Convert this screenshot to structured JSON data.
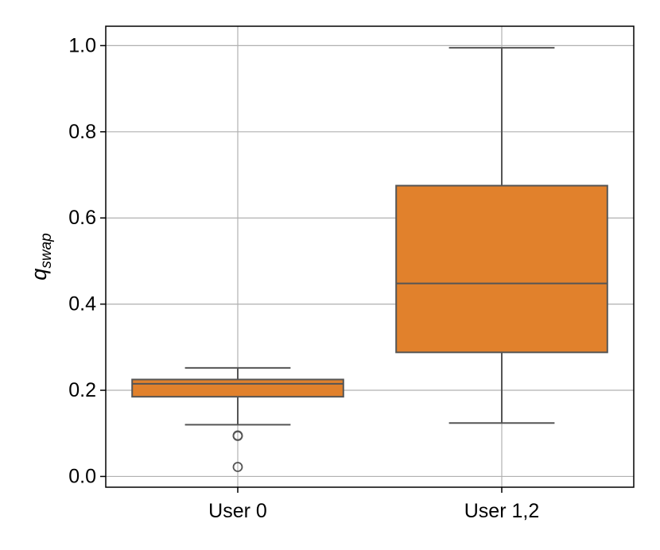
{
  "chart_data": {
    "type": "boxplot",
    "title": "",
    "xlabel": "",
    "ylabel": "q_swap",
    "ylabel_base": "q",
    "ylabel_sub": "swap",
    "ylim": [
      -0.025,
      1.045
    ],
    "yticks": [
      0.0,
      0.2,
      0.4,
      0.6,
      0.8,
      1.0
    ],
    "ytick_labels": [
      "0.0",
      "0.2",
      "0.4",
      "0.6",
      "0.8",
      "1.0"
    ],
    "grid": true,
    "box_color": "#e1812c",
    "line_color": "#555555",
    "categories": [
      "User 0",
      "User 1,2"
    ],
    "boxes": [
      {
        "category": "User 0",
        "whisker_low": 0.12,
        "q1": 0.185,
        "median": 0.215,
        "q3": 0.225,
        "whisker_high": 0.252,
        "outliers": [
          0.095,
          0.094,
          0.022
        ]
      },
      {
        "category": "User 1,2",
        "whisker_low": 0.124,
        "q1": 0.288,
        "median": 0.448,
        "q3": 0.675,
        "whisker_high": 0.995,
        "outliers": []
      }
    ]
  }
}
